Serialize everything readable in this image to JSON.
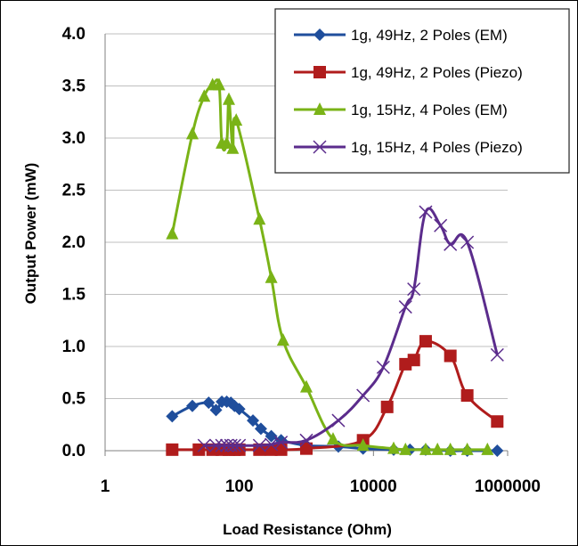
{
  "chart_data": {
    "type": "line",
    "x_scale": "log",
    "xlabel": "Load Resistance (Ohm)",
    "ylabel": "Output Power (mW)",
    "xlim": [
      1,
      1000000
    ],
    "ylim": [
      0,
      4
    ],
    "x_tick_labels": [
      "1",
      "100",
      "10000",
      "1000000"
    ],
    "y_tick_labels": [
      "0.0",
      "0.5",
      "1.0",
      "1.5",
      "2.0",
      "2.5",
      "3.0",
      "3.5",
      "4.0"
    ],
    "grid": "horizontal",
    "legend_position": "top-right",
    "series": [
      {
        "name": "1g, 49Hz, 2 Poles (EM)",
        "color": "#1f4e9c",
        "marker": "diamond",
        "x": [
          10,
          20,
          35,
          45,
          55,
          65,
          75,
          85,
          100,
          160,
          210,
          300,
          420,
          1000,
          3000,
          7000,
          20000,
          35000,
          60000,
          140000,
          250000,
          700000
        ],
        "y": [
          0.33,
          0.43,
          0.46,
          0.39,
          0.47,
          0.47,
          0.46,
          0.43,
          0.4,
          0.29,
          0.21,
          0.14,
          0.1,
          0.05,
          0.04,
          0.02,
          0.01,
          0.01,
          0.01,
          0.0,
          0.0,
          0.0
        ]
      },
      {
        "name": "1g, 49Hz, 2 Poles (Piezo)",
        "color": "#b01c1c",
        "marker": "square",
        "x": [
          10,
          25,
          40,
          55,
          70,
          85,
          100,
          200,
          300,
          420,
          1000,
          7000,
          16000,
          30000,
          40000,
          60000,
          140000,
          250000,
          700000
        ],
        "y": [
          0.01,
          0.01,
          0.01,
          0.01,
          0.01,
          0.01,
          0.01,
          0.01,
          0.01,
          0.01,
          0.02,
          0.1,
          0.42,
          0.83,
          0.87,
          1.05,
          0.91,
          0.53,
          0.28
        ]
      },
      {
        "name": "1g, 15Hz, 4 Poles (EM)",
        "color": "#7ab317",
        "marker": "triangle",
        "x": [
          10,
          20,
          30,
          40,
          50,
          55,
          65,
          70,
          80,
          90,
          200,
          300,
          450,
          1000,
          2500,
          7000,
          20000,
          30000,
          60000,
          90000,
          140000,
          250000,
          500000
        ],
        "y": [
          2.08,
          3.04,
          3.4,
          3.51,
          3.51,
          2.95,
          2.95,
          3.37,
          2.9,
          3.17,
          2.22,
          1.66,
          1.06,
          0.61,
          0.11,
          0.05,
          0.02,
          0.01,
          0.01,
          0.01,
          0.01,
          0.01,
          0.01
        ]
      },
      {
        "name": "1g, 15Hz, 4 Poles (Piezo)",
        "color": "#5b2c8c",
        "marker": "x",
        "x": [
          30,
          45,
          55,
          65,
          75,
          85,
          100,
          200,
          300,
          420,
          1000,
          3000,
          7000,
          14000,
          30000,
          40000,
          60000,
          100000,
          140000,
          250000,
          700000
        ],
        "y": [
          0.05,
          0.05,
          0.05,
          0.05,
          0.05,
          0.05,
          0.05,
          0.05,
          0.06,
          0.08,
          0.1,
          0.29,
          0.53,
          0.8,
          1.38,
          1.55,
          2.29,
          2.16,
          1.98,
          2.0,
          0.92
        ]
      }
    ]
  }
}
